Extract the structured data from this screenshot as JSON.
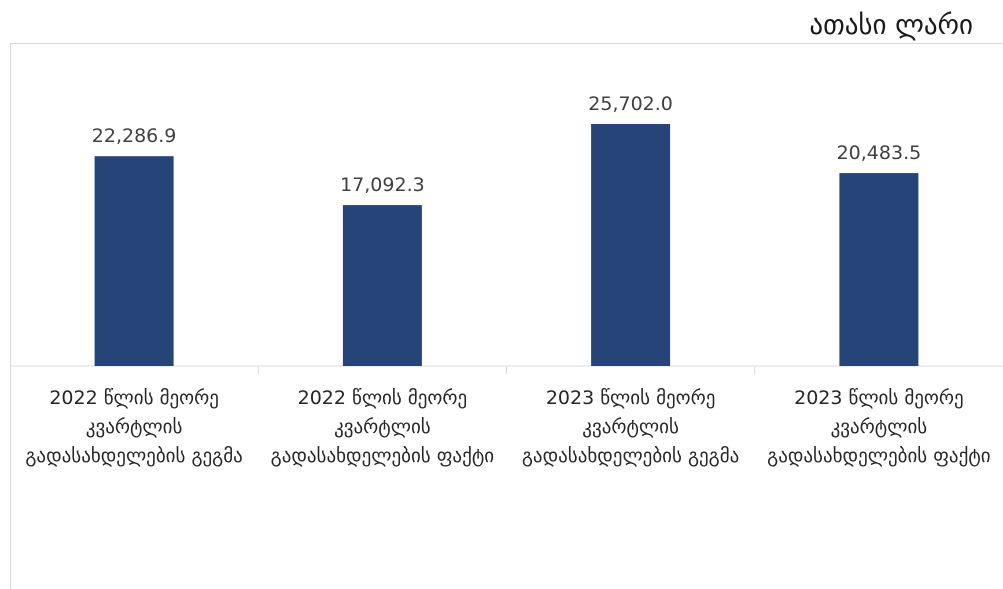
{
  "chart_data": {
    "type": "bar",
    "unit_label": "ათასი ლარი",
    "categories": [
      "2022 წლის მეორე კვარტლის გადასახდელების გეგმა",
      "2022 წლის მეორე კვარტლის გადასახდელების ფაქტი",
      "2023 წლის მეორე კვარტლის გადასახდელების გეგმა",
      "2023 წლის მეორე კვარტლის გადასახდელების ფაქტი"
    ],
    "values": [
      22286.9,
      17092.3,
      25702.0,
      20483.5
    ],
    "value_labels": [
      "22,286.9",
      "17,092.3",
      "25,702.0",
      "20,483.5"
    ],
    "ylim": [
      0,
      30000
    ],
    "grid": false,
    "bar_color": "#264478"
  }
}
